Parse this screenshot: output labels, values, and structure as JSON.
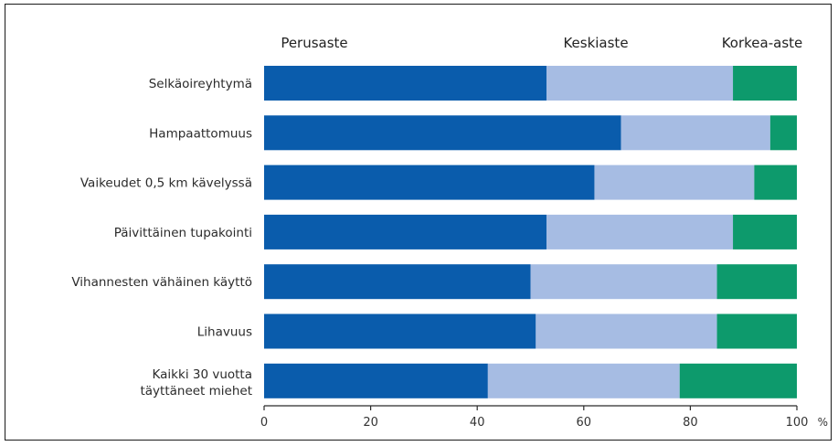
{
  "chart_data": {
    "type": "bar",
    "stacked": true,
    "orientation": "horizontal",
    "categories": [
      "Selkäoireyhtymä",
      "Hampaattomuus",
      "Vaikeudet 0,5 km kävelyssä",
      "Päivittäinen tupakointi",
      "Vihannesten vähäinen käyttö",
      "Lihavuus",
      "Kaikki 30 vuotta\ntäyttäneet miehet"
    ],
    "series": [
      {
        "name": "Perusaste",
        "color": "#0a5cac",
        "values": [
          53,
          67,
          62,
          53,
          50,
          51,
          42
        ]
      },
      {
        "name": "Keskiaste",
        "color": "#a6bce3",
        "values": [
          35,
          28,
          30,
          35,
          35,
          34,
          36
        ]
      },
      {
        "name": "Korkea-aste",
        "color": "#0d9a6c",
        "values": [
          12,
          5,
          8,
          12,
          15,
          15,
          22
        ]
      }
    ],
    "xlim": [
      0,
      100
    ],
    "xticks": [
      0,
      20,
      40,
      60,
      80,
      100
    ],
    "x_unit": "%",
    "legend_placement": "top",
    "grid": false
  }
}
